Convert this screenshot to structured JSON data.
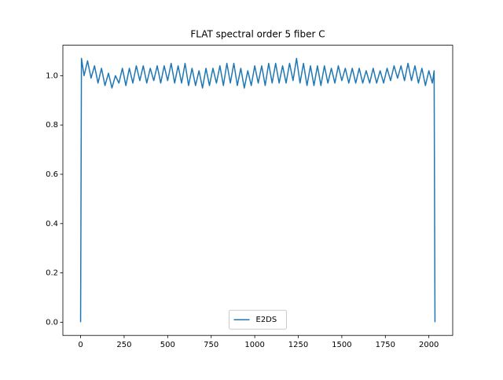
{
  "chart_data": {
    "type": "line",
    "title": "FLAT spectral order 5 fiber C",
    "x": [
      0,
      5,
      20,
      40,
      60,
      80,
      100,
      120,
      140,
      160,
      180,
      200,
      220,
      240,
      260,
      280,
      300,
      320,
      340,
      360,
      380,
      400,
      420,
      440,
      460,
      480,
      500,
      520,
      540,
      560,
      580,
      600,
      620,
      640,
      660,
      680,
      700,
      720,
      740,
      760,
      780,
      800,
      820,
      840,
      860,
      880,
      900,
      920,
      940,
      960,
      980,
      1000,
      1020,
      1040,
      1060,
      1080,
      1100,
      1120,
      1140,
      1160,
      1180,
      1200,
      1220,
      1240,
      1260,
      1280,
      1300,
      1320,
      1340,
      1360,
      1380,
      1400,
      1420,
      1440,
      1460,
      1480,
      1500,
      1520,
      1540,
      1560,
      1580,
      1600,
      1620,
      1640,
      1660,
      1680,
      1700,
      1720,
      1740,
      1760,
      1780,
      1800,
      1820,
      1840,
      1860,
      1880,
      1900,
      1920,
      1940,
      1960,
      1980,
      2000,
      2020,
      2030,
      2035
    ],
    "series": [
      {
        "name": "E2DS",
        "color": "#1f77b4",
        "values": [
          0.0,
          1.07,
          1.0,
          1.06,
          0.99,
          1.04,
          0.97,
          1.03,
          0.96,
          1.01,
          0.95,
          1.0,
          0.97,
          1.03,
          0.96,
          1.03,
          0.97,
          1.04,
          0.98,
          1.04,
          0.97,
          1.03,
          0.98,
          1.04,
          0.97,
          1.04,
          0.98,
          1.05,
          0.97,
          1.04,
          0.97,
          1.05,
          0.96,
          1.03,
          0.96,
          1.02,
          0.95,
          1.03,
          0.96,
          1.03,
          0.97,
          1.04,
          0.96,
          1.05,
          0.97,
          1.05,
          0.96,
          1.03,
          0.95,
          1.02,
          0.96,
          1.04,
          0.97,
          1.04,
          0.96,
          1.05,
          0.97,
          1.05,
          0.97,
          1.04,
          0.97,
          1.05,
          0.98,
          1.07,
          0.97,
          1.05,
          0.96,
          1.04,
          0.96,
          1.04,
          0.96,
          1.04,
          0.97,
          1.03,
          0.97,
          1.04,
          0.98,
          1.03,
          0.97,
          1.03,
          0.97,
          1.03,
          0.97,
          1.02,
          0.97,
          1.03,
          0.97,
          1.02,
          0.97,
          1.03,
          0.98,
          1.04,
          0.99,
          1.04,
          0.98,
          1.05,
          0.98,
          1.04,
          0.97,
          1.03,
          0.96,
          1.02,
          0.97,
          1.02,
          0.0
        ]
      }
    ],
    "xlim": [
      -101.75,
      2136.75
    ],
    "xticks": [
      0,
      250,
      500,
      750,
      1000,
      1250,
      1500,
      1750,
      2000
    ],
    "ylim": [
      -0.0535,
      1.1235
    ],
    "yticks": [
      {
        "value": 0,
        "label": "0.0"
      },
      {
        "value": 0.2,
        "label": "0.2"
      },
      {
        "value": 0.4,
        "label": "0.4"
      },
      {
        "value": 0.6,
        "label": "0.6"
      },
      {
        "value": 0.8,
        "label": "0.8"
      },
      {
        "value": 1.0,
        "label": "1.0"
      }
    ],
    "legend": "lower center"
  }
}
